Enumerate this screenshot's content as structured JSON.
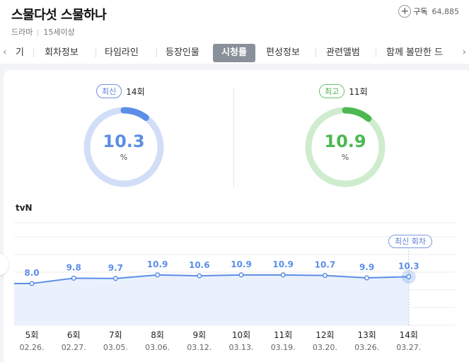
{
  "header": {
    "title": "스물다섯 스물하나",
    "genre": "드라마",
    "rating": "15세이상",
    "subscribe_label": "구독",
    "subscribe_count": "64,885"
  },
  "tabs": [
    {
      "label": "기"
    },
    {
      "label": "회차정보"
    },
    {
      "label": "타임라인"
    },
    {
      "label": "등장인물"
    },
    {
      "label": "시청률",
      "active": true
    },
    {
      "label": "편성정보"
    },
    {
      "label": "관련앨범"
    },
    {
      "label": "함께 볼만한 드"
    }
  ],
  "summary": {
    "latest": {
      "badge": "최신",
      "episode": "14회",
      "value": "10.3",
      "unit": "%",
      "fill": 0.103
    },
    "best": {
      "badge": "최고",
      "episode": "11회",
      "value": "10.9",
      "unit": "%",
      "fill": 0.109
    }
  },
  "network": "tvN",
  "tooltip_label": "최신 회차",
  "colors": {
    "blue": "#5b8ee6",
    "green": "#4db852",
    "blue_track": "#d2def8",
    "green_track": "#cfeccf"
  },
  "chart_data": {
    "type": "line",
    "categories": [
      "5회",
      "6회",
      "7회",
      "8회",
      "9회",
      "10회",
      "11회",
      "12회",
      "13회",
      "14회"
    ],
    "dates": [
      "02.26.",
      "02.27.",
      "03.05.",
      "03.06.",
      "03.12.",
      "03.13.",
      "03.19.",
      "03.20.",
      "03.26.",
      "03.27."
    ],
    "values": [
      8.0,
      9.8,
      9.7,
      10.9,
      10.6,
      10.9,
      10.9,
      10.7,
      9.9,
      10.3
    ],
    "labels": [
      "8.0",
      "9.8",
      "9.7",
      "10.9",
      "10.6",
      "10.9",
      "10.9",
      "10.7",
      "9.9",
      "10.3"
    ],
    "grid": true,
    "highlight_index": 9
  }
}
